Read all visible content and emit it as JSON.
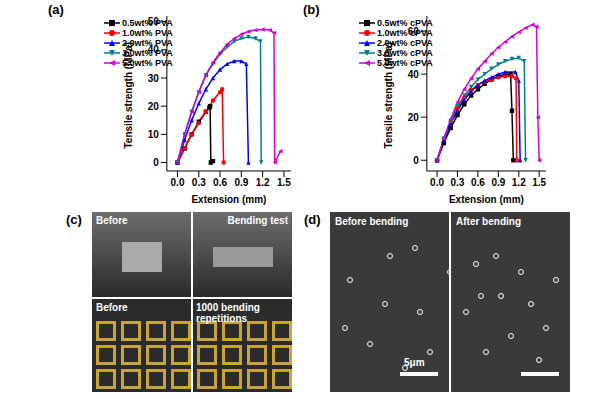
{
  "chart_data": [
    {
      "type": "line",
      "title": "(a)",
      "x_label": "Extension (mm)",
      "y_label": "Tensile strength (MPa)",
      "xlim": [
        -0.15,
        1.6
      ],
      "xticks": [
        {
          "value": 0,
          "label": "0.0"
        },
        {
          "value": 0.3,
          "label": "0.3"
        },
        {
          "value": 0.6,
          "label": "0.6"
        },
        {
          "value": 0.9,
          "label": "0.9"
        },
        {
          "value": 1.2,
          "label": "1.2"
        },
        {
          "value": 1.5,
          "label": "1.5"
        }
      ],
      "ylim": [
        -3,
        52
      ],
      "yticks": [
        0,
        10,
        20,
        30,
        40,
        50
      ],
      "legend": "upper left",
      "series": [
        {
          "name": "0.5wt% PVA",
          "color": "#000000",
          "marker": "square",
          "x": [
            0,
            0.1,
            0.2,
            0.3,
            0.4,
            0.45,
            0.46,
            0.47,
            0.5
          ],
          "values": [
            0,
            5,
            10,
            14.5,
            18,
            19.5,
            20,
            0,
            0.5
          ]
        },
        {
          "name": "1.0wt% PVA",
          "color": "#ff0000",
          "marker": "circle",
          "x": [
            0,
            0.1,
            0.2,
            0.3,
            0.4,
            0.5,
            0.6,
            0.63,
            0.65
          ],
          "values": [
            0,
            5,
            10,
            14,
            18,
            22,
            25,
            26,
            0
          ]
        },
        {
          "name": "2.0wt% PVA",
          "color": "#0000ff",
          "marker": "triangle-up",
          "x": [
            0,
            0.1,
            0.2,
            0.3,
            0.4,
            0.5,
            0.6,
            0.7,
            0.8,
            0.9,
            0.97,
            1.0
          ],
          "values": [
            0,
            8,
            15,
            21,
            26,
            30,
            33,
            35,
            36,
            36,
            35,
            0
          ]
        },
        {
          "name": "3.0wt% PVA",
          "color": "#008080",
          "marker": "triangle-down",
          "x": [
            0,
            0.1,
            0.2,
            0.3,
            0.4,
            0.5,
            0.6,
            0.7,
            0.8,
            0.9,
            1.0,
            1.1,
            1.17,
            1.18
          ],
          "values": [
            0,
            10,
            18,
            25,
            31,
            35,
            38.5,
            41,
            43,
            44,
            44.5,
            44,
            43,
            0
          ]
        },
        {
          "name": "5.0wt% PVA",
          "color": "#d400d4",
          "marker": "triangle-left",
          "x": [
            0,
            0.1,
            0.2,
            0.3,
            0.4,
            0.5,
            0.6,
            0.7,
            0.8,
            0.9,
            1.0,
            1.1,
            1.2,
            1.3,
            1.36,
            1.37,
            1.45
          ],
          "values": [
            0,
            10,
            18,
            25,
            31,
            35.5,
            39,
            42,
            44,
            45.5,
            46.5,
            47,
            47.2,
            47,
            46,
            0,
            4
          ]
        }
      ]
    },
    {
      "type": "line",
      "title": "(b)",
      "x_label": "Extension (mm)",
      "y_label": "Tensile strength (MPa)",
      "xlim": [
        -0.15,
        1.6
      ],
      "xticks": [
        {
          "value": 0,
          "label": "0.0"
        },
        {
          "value": 0.3,
          "label": "0.3"
        },
        {
          "value": 0.6,
          "label": "0.6"
        },
        {
          "value": 0.9,
          "label": "0.9"
        },
        {
          "value": 1.2,
          "label": "1.2"
        },
        {
          "value": 1.5,
          "label": "1.5"
        }
      ],
      "ylim": [
        -5,
        67
      ],
      "yticks": [
        0,
        20,
        40,
        60
      ],
      "legend": "upper left",
      "series": [
        {
          "name": "0.5wt% cPVA",
          "color": "#000000",
          "marker": "square",
          "x": [
            0,
            0.1,
            0.2,
            0.3,
            0.4,
            0.5,
            0.6,
            0.7,
            0.8,
            0.9,
            1.0,
            1.08,
            1.1,
            1.12
          ],
          "values": [
            0,
            8,
            15,
            21,
            26,
            30,
            33,
            35.5,
            37.5,
            39,
            40,
            40,
            23,
            0
          ]
        },
        {
          "name": "1.0wt% cPVA",
          "color": "#ff0000",
          "marker": "circle",
          "x": [
            0,
            0.1,
            0.2,
            0.3,
            0.4,
            0.5,
            0.6,
            0.7,
            0.8,
            0.9,
            1.0,
            1.1,
            1.16,
            1.17
          ],
          "values": [
            0,
            10,
            18,
            24,
            29,
            32.5,
            35,
            36.5,
            37.5,
            38.5,
            39,
            39,
            38,
            0
          ]
        },
        {
          "name": "2.0wt% cPVA",
          "color": "#0000ff",
          "marker": "triangle-up",
          "x": [
            0,
            0.1,
            0.2,
            0.3,
            0.4,
            0.5,
            0.6,
            0.7,
            0.8,
            0.9,
            1.0,
            1.15,
            1.2,
            1.22
          ],
          "values": [
            0,
            9,
            17,
            23,
            28,
            32,
            35,
            37,
            38.5,
            40,
            41,
            41,
            37,
            0
          ]
        },
        {
          "name": "3.0wt% cPVA",
          "color": "#008080",
          "marker": "triangle-down",
          "x": [
            0,
            0.1,
            0.2,
            0.3,
            0.4,
            0.5,
            0.6,
            0.7,
            0.8,
            0.9,
            1.0,
            1.1,
            1.2,
            1.28,
            1.3
          ],
          "values": [
            0,
            10,
            18,
            25,
            30,
            34,
            37.5,
            40,
            42.5,
            44.5,
            46,
            47,
            47.5,
            46,
            0
          ]
        },
        {
          "name": "5.0wt% cPVA",
          "color": "#d400d4",
          "marker": "triangle-left",
          "x": [
            0,
            0.1,
            0.2,
            0.3,
            0.4,
            0.5,
            0.6,
            0.7,
            0.8,
            0.9,
            1.0,
            1.1,
            1.2,
            1.3,
            1.4,
            1.46,
            1.48,
            1.5
          ],
          "values": [
            0,
            10,
            19,
            27,
            33,
            38,
            42.5,
            46,
            49.5,
            52.5,
            55,
            57.5,
            59.5,
            61.5,
            63,
            62,
            20,
            0
          ]
        }
      ]
    }
  ],
  "photos": [
    {
      "label": "(c)",
      "top_left": "Before",
      "top_right": "Bending test",
      "bottom_left": "Before",
      "bottom_right": "1000 bending repetitions"
    },
    {
      "label": "(d)",
      "left": "Before bending",
      "right": "After bending",
      "scale_bar": "5μm"
    }
  ]
}
